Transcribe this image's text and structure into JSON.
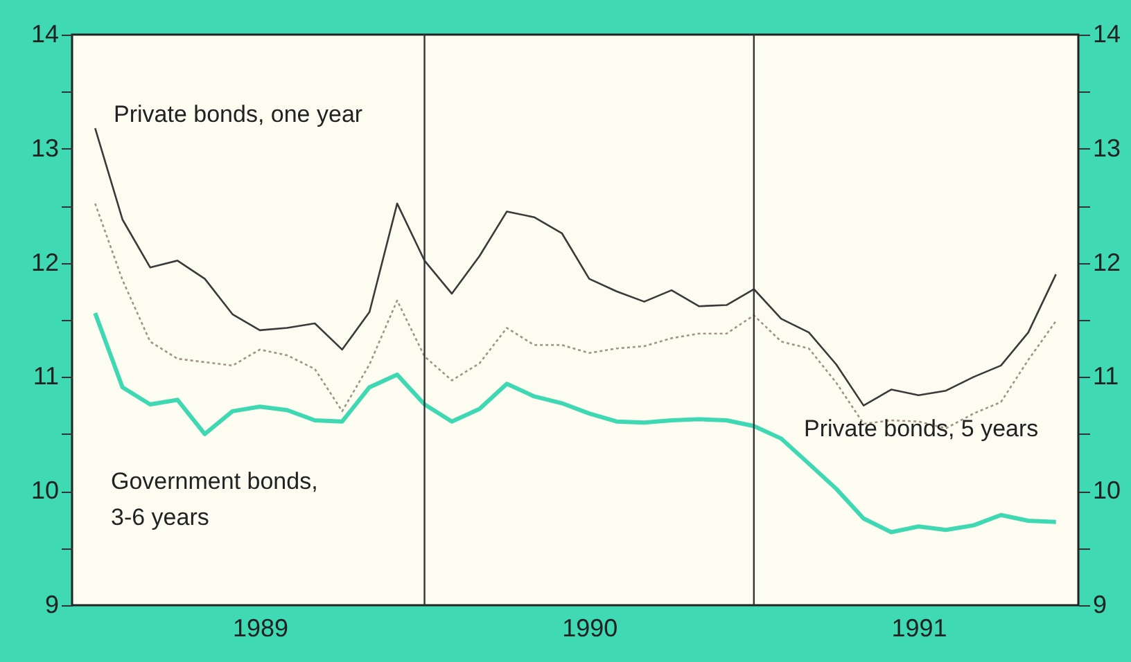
{
  "chart_data": {
    "type": "line",
    "x": [
      1989.0,
      1989.083,
      1989.167,
      1989.25,
      1989.333,
      1989.417,
      1989.5,
      1989.583,
      1989.667,
      1989.75,
      1989.833,
      1989.917,
      1990.0,
      1990.083,
      1990.167,
      1990.25,
      1990.333,
      1990.417,
      1990.5,
      1990.583,
      1990.667,
      1990.75,
      1990.833,
      1990.917,
      1991.0,
      1991.083,
      1991.167,
      1991.25,
      1991.333,
      1991.417,
      1991.5,
      1991.583,
      1991.667,
      1991.75,
      1991.833,
      1991.917
    ],
    "series": [
      {
        "name": "Private bonds, one year",
        "color": "#3a3a3a",
        "line_style": "solid",
        "values": [
          13.18,
          12.38,
          11.96,
          12.02,
          11.86,
          11.55,
          11.41,
          11.43,
          11.47,
          11.24,
          11.57,
          12.52,
          12.02,
          11.73,
          12.06,
          12.45,
          12.4,
          12.26,
          11.86,
          11.75,
          11.66,
          11.76,
          11.62,
          11.63,
          11.77,
          11.51,
          11.39,
          11.11,
          10.75,
          10.89,
          10.84,
          10.88,
          11.0,
          11.1,
          11.39,
          11.9
        ]
      },
      {
        "name": "Private bonds, 5 years",
        "color": "#a09484",
        "line_style": "dotted",
        "values": [
          12.52,
          11.85,
          11.31,
          11.16,
          11.13,
          11.1,
          11.24,
          11.19,
          11.07,
          10.7,
          11.11,
          11.67,
          11.18,
          10.97,
          11.12,
          11.43,
          11.28,
          11.28,
          11.21,
          11.25,
          11.27,
          11.34,
          11.38,
          11.38,
          11.54,
          11.31,
          11.25,
          10.95,
          10.59,
          10.62,
          10.61,
          10.55,
          10.68,
          10.78,
          11.15,
          11.49
        ]
      },
      {
        "name": "Government bonds,\n3-6 years",
        "color": "#3ed8b2",
        "line_style": "solid",
        "values": [
          11.56,
          10.91,
          10.76,
          10.8,
          10.5,
          10.7,
          10.74,
          10.71,
          10.62,
          10.61,
          10.91,
          11.02,
          10.76,
          10.61,
          10.72,
          10.94,
          10.83,
          10.77,
          10.68,
          10.61,
          10.6,
          10.62,
          10.63,
          10.62,
          10.57,
          10.46,
          10.24,
          10.02,
          9.76,
          9.64,
          9.69,
          9.66,
          9.7,
          9.79,
          9.74,
          9.73
        ]
      }
    ],
    "xlim": [
      1988.93,
      1991.985
    ],
    "xticks": [
      {
        "value": 1989.5,
        "label": "1989"
      },
      {
        "value": 1990.5,
        "label": "1990"
      },
      {
        "value": 1991.5,
        "label": "1991"
      }
    ],
    "ylim": [
      9,
      14
    ],
    "yticks": [
      9,
      {
        "value": 9.5,
        "label": null
      },
      10,
      {
        "value": 10.5,
        "label": null
      },
      11,
      {
        "value": 11.5,
        "label": null
      },
      12,
      {
        "value": 12.5,
        "label": null
      },
      13,
      {
        "value": 13.5,
        "label": null
      },
      14
    ],
    "y2lim": [
      9,
      14
    ],
    "y2ticks": [
      9,
      {
        "value": 9.5,
        "label": null
      },
      10,
      {
        "value": 10.5,
        "label": null
      },
      11,
      {
        "value": 11.5,
        "label": null
      },
      12,
      {
        "value": 12.5,
        "label": null
      },
      13,
      {
        "value": 13.5,
        "label": null
      },
      14
    ],
    "ref_lines": [
      {
        "axis": "x",
        "value": 1990.0,
        "color": "#333333"
      },
      {
        "axis": "x",
        "value": 1991.0,
        "color": "#333333"
      }
    ],
    "grid": false
  }
}
